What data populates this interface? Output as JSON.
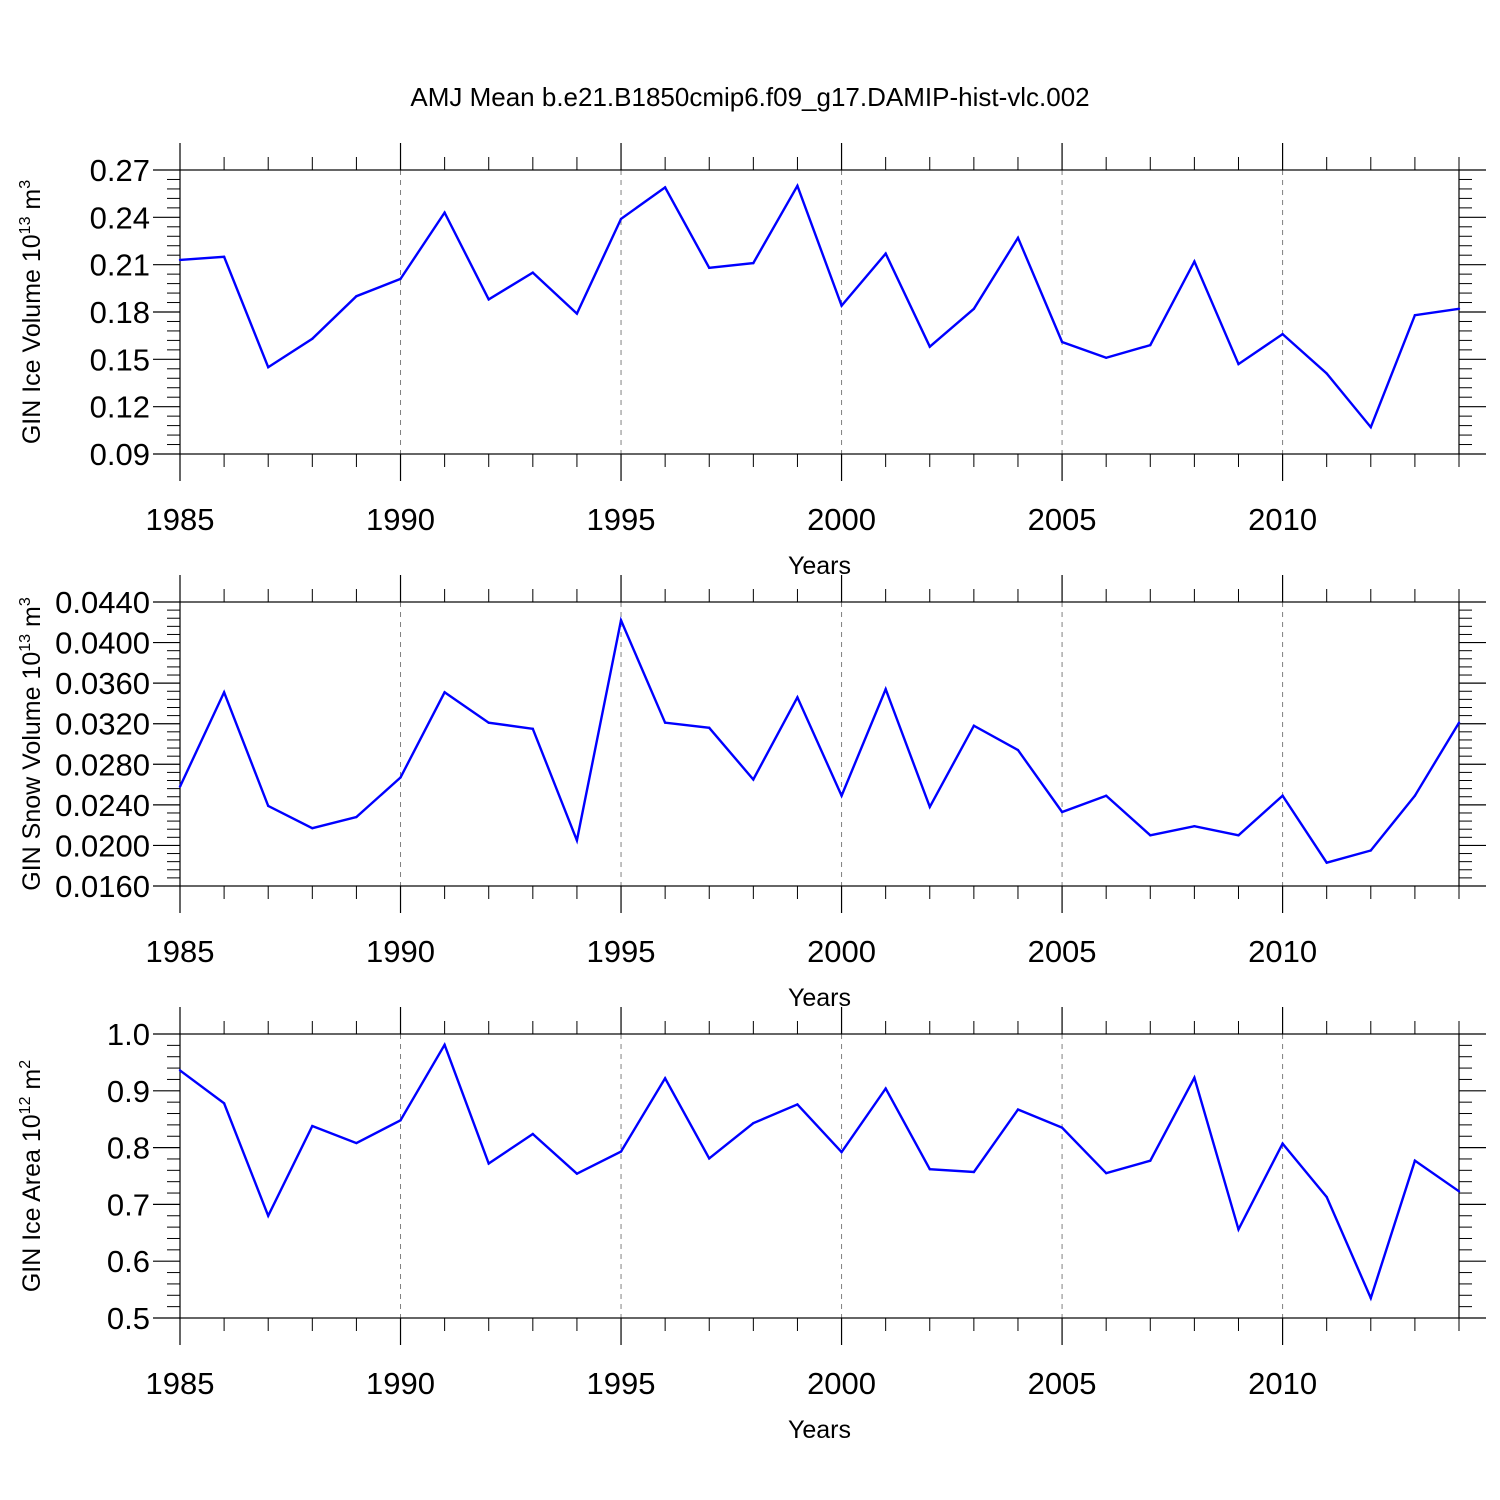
{
  "title": "AMJ Mean b.e21.B1850cmip6.f09_g17.DAMIP-hist-vlc.002",
  "colors": {
    "line": "#0000ff",
    "axis": "#000000",
    "grid": "#808080",
    "background": "#ffffff"
  },
  "chart_data": [
    {
      "type": "line",
      "ylabel": "GIN Ice Volume 10",
      "ylabel_exp": "13",
      "ylabel_unit": " m",
      "ylabel_unit_exp": "3",
      "xlabel": "Years",
      "xlim": [
        1985,
        2014
      ],
      "ylim": [
        0.09,
        0.27
      ],
      "yticks": [
        "0.09",
        "0.12",
        "0.15",
        "0.18",
        "0.21",
        "0.24",
        "0.27"
      ],
      "xticks": [
        "1985",
        "1990",
        "1995",
        "2000",
        "2005",
        "2010"
      ],
      "x": [
        1985,
        1986,
        1987,
        1988,
        1989,
        1990,
        1991,
        1992,
        1993,
        1994,
        1995,
        1996,
        1997,
        1998,
        1999,
        2000,
        2001,
        2002,
        2003,
        2004,
        2005,
        2006,
        2007,
        2008,
        2009,
        2010,
        2011,
        2012,
        2013,
        2014
      ],
      "values": [
        0.213,
        0.215,
        0.145,
        0.163,
        0.19,
        0.201,
        0.243,
        0.188,
        0.205,
        0.179,
        0.239,
        0.259,
        0.208,
        0.211,
        0.26,
        0.184,
        0.217,
        0.158,
        0.182,
        0.227,
        0.161,
        0.151,
        0.159,
        0.212,
        0.147,
        0.166,
        0.141,
        0.107,
        0.178,
        0.182
      ]
    },
    {
      "type": "line",
      "ylabel": "GIN Snow Volume 10",
      "ylabel_exp": "13",
      "ylabel_unit": " m",
      "ylabel_unit_exp": "3",
      "xlabel": "Years",
      "xlim": [
        1985,
        2014
      ],
      "ylim": [
        0.016,
        0.044
      ],
      "yticks": [
        "0.0160",
        "0.0200",
        "0.0240",
        "0.0280",
        "0.0320",
        "0.0360",
        "0.0400",
        "0.0440"
      ],
      "xticks": [
        "1985",
        "1990",
        "1995",
        "2000",
        "2005",
        "2010"
      ],
      "x": [
        1985,
        1986,
        1987,
        1988,
        1989,
        1990,
        1991,
        1992,
        1993,
        1994,
        1995,
        1996,
        1997,
        1998,
        1999,
        2000,
        2001,
        2002,
        2003,
        2004,
        2005,
        2006,
        2007,
        2008,
        2009,
        2010,
        2011,
        2012,
        2013,
        2014
      ],
      "values": [
        0.0258,
        0.0351,
        0.0239,
        0.0217,
        0.0228,
        0.0267,
        0.0351,
        0.0321,
        0.0315,
        0.0205,
        0.0422,
        0.0321,
        0.0316,
        0.0265,
        0.0346,
        0.0249,
        0.0354,
        0.0238,
        0.0318,
        0.0294,
        0.0233,
        0.0249,
        0.021,
        0.0219,
        0.021,
        0.0249,
        0.0183,
        0.0195,
        0.0249,
        0.0321
      ]
    },
    {
      "type": "line",
      "ylabel": "GIN Ice Area 10",
      "ylabel_exp": "12",
      "ylabel_unit": " m",
      "ylabel_unit_exp": "2",
      "xlabel": "Years",
      "xlim": [
        1985,
        2014
      ],
      "ylim": [
        0.5,
        1.0
      ],
      "yticks": [
        "0.5",
        "0.6",
        "0.7",
        "0.8",
        "0.9",
        "1.0"
      ],
      "xticks": [
        "1985",
        "1990",
        "1995",
        "2000",
        "2005",
        "2010"
      ],
      "x": [
        1985,
        1986,
        1987,
        1988,
        1989,
        1990,
        1991,
        1992,
        1993,
        1994,
        1995,
        1996,
        1997,
        1998,
        1999,
        2000,
        2001,
        2002,
        2003,
        2004,
        2005,
        2006,
        2007,
        2008,
        2009,
        2010,
        2011,
        2012,
        2013,
        2014
      ],
      "values": [
        0.936,
        0.878,
        0.68,
        0.838,
        0.808,
        0.848,
        0.981,
        0.772,
        0.824,
        0.754,
        0.793,
        0.922,
        0.781,
        0.843,
        0.876,
        0.792,
        0.904,
        0.762,
        0.757,
        0.867,
        0.835,
        0.755,
        0.777,
        0.923,
        0.656,
        0.807,
        0.713,
        0.535,
        0.777,
        0.723
      ]
    }
  ]
}
